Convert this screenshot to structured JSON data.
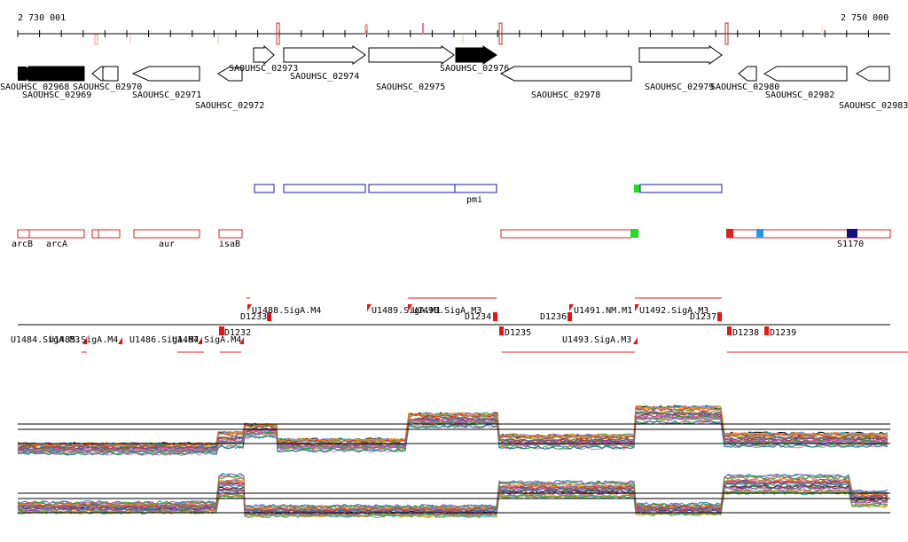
{
  "ruler": {
    "start_label": "2 730 001",
    "end_label": "2 750 000"
  },
  "genes": [
    {
      "label": "SAOUHSC_02968",
      "strand": "-",
      "filled": true
    },
    {
      "label": "SAOUHSC_02969",
      "strand": "-",
      "filled": true
    },
    {
      "label": "SAOUHSC_02970",
      "strand": "-",
      "filled": false
    },
    {
      "label": "SAOUHSC_02971",
      "strand": "-",
      "filled": false
    },
    {
      "label": "SAOUHSC_02972",
      "strand": "-",
      "filled": false
    },
    {
      "label": "SAOUHSC_02973",
      "strand": "+",
      "filled": false
    },
    {
      "label": "SAOUHSC_02974",
      "strand": "+",
      "filled": false
    },
    {
      "label": "SAOUHSC_02975",
      "strand": "+",
      "filled": false
    },
    {
      "label": "SAOUHSC_02976",
      "strand": "+",
      "filled": true
    },
    {
      "label": "SAOUHSC_02978",
      "strand": "-",
      "filled": false
    },
    {
      "label": "SAOUHSC_02979",
      "strand": "+",
      "filled": false
    },
    {
      "label": "SAOUHSC_02980",
      "strand": "-",
      "filled": false
    },
    {
      "label": "SAOUHSC_02982",
      "strand": "-",
      "filled": false
    },
    {
      "label": "SAOUHSC_02983",
      "strand": "-",
      "filled": false
    }
  ],
  "operon_track_blue": {
    "labels": [
      "pmi"
    ],
    "color": "#1a1aa8"
  },
  "operon_track_red": {
    "labels": [
      "arcB",
      "arcA",
      "aur",
      "isaB",
      "S1170"
    ],
    "color": "#e02020"
  },
  "tss_track": {
    "upper_labels": [
      "D1233",
      "U1488.SigA.M4",
      "U1489.SigA.M1",
      "U1490.SigA.M3",
      "D1234",
      "D1236",
      "U1491.NM.M1",
      "U1492.SigA.M3",
      "D1237"
    ],
    "lower_labels": [
      "U1484.SigA.M3",
      "U1485.SigA.M4",
      "U1486.SigA.M4",
      "U1487.SigA.M4",
      "D1232",
      "D1235",
      "U1493.SigA.M3",
      "D1238",
      "D1239"
    ]
  },
  "colors": {
    "text": "#000000",
    "gene_outline": "#000000",
    "operon_blue": "#1a1aa8",
    "operon_red": "#e02020",
    "highlight_green": "#22dd22",
    "highlight_lightblue": "#2299ee",
    "highlight_navy": "#101080",
    "tss_marker": "#ee1111"
  }
}
